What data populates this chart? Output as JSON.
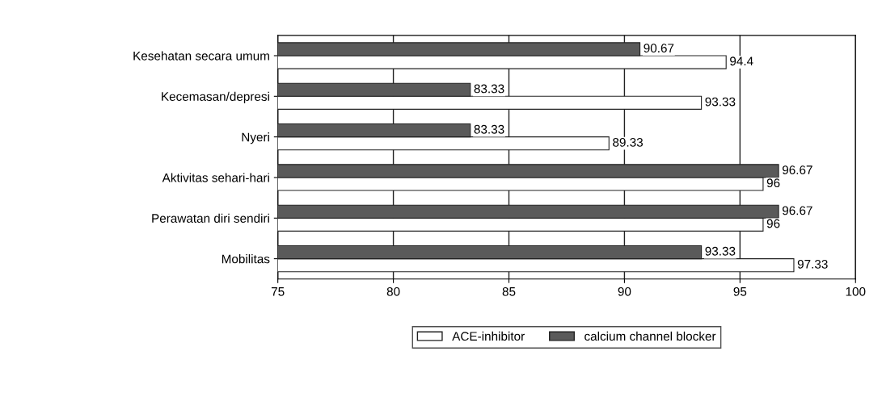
{
  "chart_data": {
    "type": "bar",
    "orientation": "horizontal",
    "categories": [
      "Kesehatan secara umum",
      "Kecemasan/depresi",
      "Nyeri",
      "Aktivitas sehari-hari",
      "Perawatan diri sendiri",
      "Mobilitas"
    ],
    "series": [
      {
        "name": "ACE-inhibitor",
        "color": "#ffffff",
        "values": [
          94.4,
          93.33,
          89.33,
          96,
          96,
          97.33
        ]
      },
      {
        "name": "calcium channel blocker",
        "color": "#5a5a5a",
        "values": [
          90.67,
          83.33,
          83.33,
          96.67,
          96.67,
          93.33
        ]
      }
    ],
    "xlim": [
      75,
      100
    ],
    "xticks": [
      75,
      80,
      85,
      90,
      95,
      100
    ],
    "grid": "x",
    "legend": "bottom",
    "data_labels": true
  }
}
